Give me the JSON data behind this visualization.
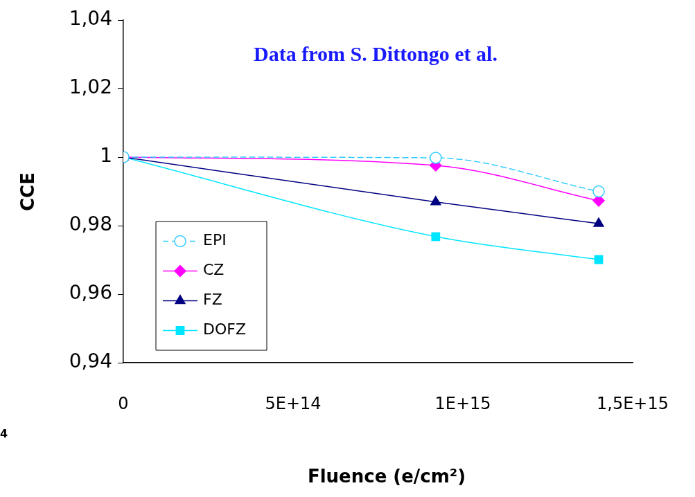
{
  "chart_data": {
    "type": "line",
    "title": "Data from S. Dittongo et al.",
    "xlabel": "Fluence (e/cm²)",
    "ylabel": "CCE",
    "annotations": [
      "4"
    ],
    "xlim": [
      0,
      1500000000000000.0
    ],
    "xticks": [
      0,
      {
        "value": 500000000000000.0,
        "label": "5E+14"
      },
      {
        "value": 1000000000000000.0,
        "label": "1E+15"
      },
      {
        "value": 1500000000000000.0,
        "label": "1,5E+15"
      }
    ],
    "ylim": [
      0.94,
      1.04
    ],
    "yticks": [
      {
        "value": 0.94,
        "label": "0,94"
      },
      {
        "value": 0.96,
        "label": "0,96"
      },
      {
        "value": 0.98,
        "label": "0,98"
      },
      1,
      {
        "value": 1.02,
        "label": "1,02"
      },
      {
        "value": 1.04,
        "label": "1,04"
      }
    ],
    "grid": false,
    "legend": "bottom left",
    "x": [
      0,
      920000000000000.0,
      1400000000000000.0
    ],
    "series": [
      {
        "name": "EPI",
        "color": "#33ccff",
        "values": [
          1,
          0.9998,
          0.99
        ],
        "marker": "circle",
        "line_style": "dashed"
      },
      {
        "name": "CZ",
        "color": "#ff00ff",
        "values": [
          1,
          0.9976,
          0.9873
        ],
        "marker": "diamond",
        "line_style": "solid"
      },
      {
        "name": "FZ",
        "color": "#000080",
        "values": [
          1,
          0.9869,
          0.9806
        ],
        "marker": "triangle",
        "line_style": "solid"
      },
      {
        "name": "DOFZ",
        "color": "#00e5ff",
        "values": [
          1,
          0.9768,
          0.9701
        ],
        "marker": "square",
        "line_style": "solid"
      }
    ]
  }
}
